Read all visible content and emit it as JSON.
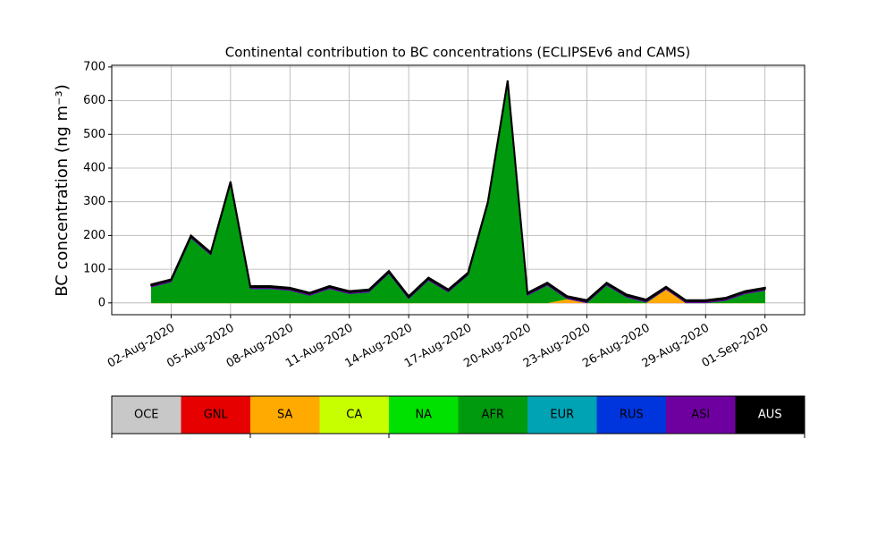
{
  "chart_data": {
    "type": "stacked_area",
    "title": "Continental contribution to BC concentrations (ECLIPSEv6 and CAMS)",
    "y_label": "BC concentration (ng m⁻³)",
    "x": [
      "2020-08-01",
      "2020-08-02",
      "2020-08-03",
      "2020-08-04",
      "2020-08-05",
      "2020-08-06",
      "2020-08-07",
      "2020-08-08",
      "2020-08-09",
      "2020-08-10",
      "2020-08-11",
      "2020-08-12",
      "2020-08-13",
      "2020-08-14",
      "2020-08-15",
      "2020-08-16",
      "2020-08-17",
      "2020-08-18",
      "2020-08-19",
      "2020-08-20",
      "2020-08-21",
      "2020-08-22",
      "2020-08-23",
      "2020-08-24",
      "2020-08-25",
      "2020-08-26",
      "2020-08-27",
      "2020-08-28",
      "2020-08-29",
      "2020-08-30",
      "2020-08-31",
      "2020-09-01"
    ],
    "xlim": [
      "2020-07-30",
      "2020-09-03"
    ],
    "xticks": [
      {
        "value": "2020-08-02",
        "label": "02-Aug-2020"
      },
      {
        "value": "2020-08-05",
        "label": "05-Aug-2020"
      },
      {
        "value": "2020-08-08",
        "label": "08-Aug-2020"
      },
      {
        "value": "2020-08-11",
        "label": "11-Aug-2020"
      },
      {
        "value": "2020-08-14",
        "label": "14-Aug-2020"
      },
      {
        "value": "2020-08-17",
        "label": "17-Aug-2020"
      },
      {
        "value": "2020-08-20",
        "label": "20-Aug-2020"
      },
      {
        "value": "2020-08-23",
        "label": "23-Aug-2020"
      },
      {
        "value": "2020-08-26",
        "label": "26-Aug-2020"
      },
      {
        "value": "2020-08-29",
        "label": "29-Aug-2020"
      },
      {
        "value": "2020-09-01",
        "label": "01-Sep-2020"
      }
    ],
    "ylim": [
      -35,
      705
    ],
    "yticks": [
      0,
      100,
      200,
      300,
      400,
      500,
      600,
      700
    ],
    "grid": true,
    "series": [
      {
        "name": "OCE",
        "color": "#c8c8c8",
        "values": [
          0,
          0,
          0,
          0,
          0,
          0,
          0,
          0,
          0,
          0,
          0,
          0,
          0,
          0,
          0,
          0,
          0,
          0,
          0,
          0,
          0,
          0,
          0,
          0,
          0,
          0,
          0,
          0,
          0,
          0,
          0,
          0
        ]
      },
      {
        "name": "GNL",
        "color": "#e60000",
        "values": [
          0,
          0,
          0,
          0,
          0,
          0,
          0,
          0,
          0,
          0,
          0,
          0,
          0,
          0,
          0,
          0,
          0,
          0,
          0,
          0,
          0,
          0,
          0,
          0,
          0,
          0,
          0,
          0,
          0,
          0,
          0,
          0
        ]
      },
      {
        "name": "SA",
        "color": "#ffaa00",
        "values": [
          0,
          0,
          0,
          0,
          0,
          0,
          0,
          0,
          0,
          0,
          0,
          0,
          0,
          0,
          0,
          0,
          0,
          0,
          0,
          0,
          0,
          12,
          0,
          0,
          0,
          0,
          40,
          0,
          0,
          0,
          0,
          0
        ]
      },
      {
        "name": "CA",
        "color": "#c8ff00",
        "values": [
          0,
          0,
          0,
          0,
          0,
          0,
          0,
          0,
          0,
          0,
          0,
          0,
          0,
          0,
          0,
          0,
          0,
          0,
          0,
          0,
          0,
          0,
          0,
          0,
          0,
          0,
          0,
          0,
          0,
          0,
          0,
          0
        ]
      },
      {
        "name": "NA",
        "color": "#00e100",
        "values": [
          0,
          0,
          0,
          0,
          0,
          0,
          0,
          0,
          0,
          0,
          0,
          0,
          0,
          0,
          0,
          0,
          0,
          0,
          0,
          0,
          0,
          0,
          0,
          0,
          0,
          0,
          0,
          0,
          0,
          0,
          0,
          0
        ]
      },
      {
        "name": "AFR",
        "color": "#009a0e",
        "values": [
          47,
          62,
          192,
          142,
          352,
          42,
          42,
          37,
          22,
          42,
          27,
          32,
          87,
          12,
          67,
          32,
          82,
          292,
          652,
          22,
          52,
          0,
          0,
          52,
          17,
          2,
          0,
          0,
          0,
          7,
          27,
          37
        ]
      },
      {
        "name": "EUR",
        "color": "#00a3b4",
        "values": [
          0,
          0,
          0,
          0,
          0,
          0,
          0,
          0,
          0,
          0,
          0,
          0,
          0,
          0,
          0,
          0,
          0,
          0,
          0,
          0,
          0,
          0,
          0,
          0,
          0,
          0,
          0,
          0,
          0,
          0,
          0,
          0
        ]
      },
      {
        "name": "RUS",
        "color": "#0034dd",
        "values": [
          0,
          0,
          0,
          0,
          0,
          0,
          0,
          0,
          0,
          0,
          0,
          0,
          0,
          0,
          0,
          0,
          0,
          0,
          0,
          0,
          0,
          0,
          0,
          0,
          0,
          0,
          0,
          0,
          0,
          0,
          0,
          0
        ]
      },
      {
        "name": "ASI",
        "color": "#6e00a0",
        "values": [
          5,
          5,
          5,
          5,
          5,
          5,
          5,
          5,
          5,
          5,
          5,
          5,
          5,
          5,
          5,
          5,
          5,
          5,
          5,
          5,
          5,
          5,
          5,
          5,
          5,
          5,
          5,
          5,
          5,
          5,
          5,
          5
        ]
      },
      {
        "name": "AUS",
        "color": "#000000",
        "values": [
          3,
          3,
          3,
          3,
          3,
          3,
          3,
          3,
          3,
          3,
          3,
          3,
          3,
          3,
          3,
          3,
          3,
          3,
          3,
          3,
          3,
          3,
          3,
          3,
          3,
          3,
          3,
          3,
          3,
          3,
          3,
          3
        ]
      }
    ]
  }
}
